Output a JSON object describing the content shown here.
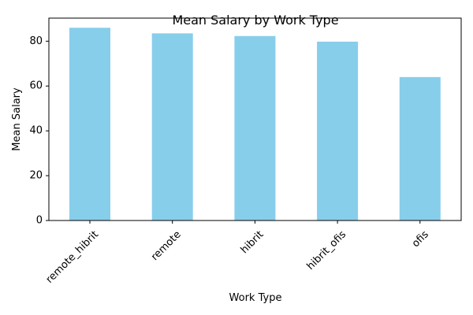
{
  "chart_data": {
    "type": "bar",
    "title": "Mean Salary by Work Type",
    "xlabel": "Work Type",
    "ylabel": "Mean Salary",
    "categories": [
      "remote_hibrit",
      "remote",
      "hibrit",
      "hibrit_ofis",
      "ofis"
    ],
    "values": [
      86.0,
      83.5,
      82.3,
      79.8,
      64.0
    ],
    "ylim": [
      0,
      90.3
    ],
    "yticks": [
      "0",
      "20",
      "40",
      "60",
      "80"
    ],
    "bar_color": "#87ceeb",
    "grid": false,
    "legend": "none"
  }
}
